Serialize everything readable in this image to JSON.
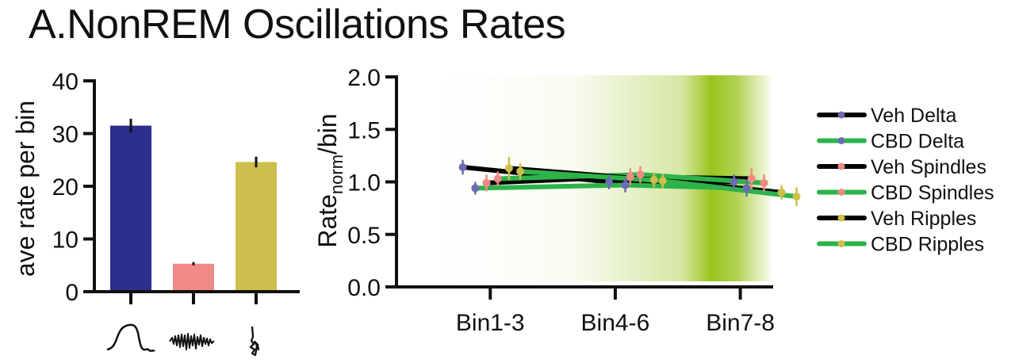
{
  "title": "A.NonREM Oscillations Rates",
  "chart_data": [
    {
      "type": "bar",
      "ylabel": "ave rate per bin",
      "ylim": [
        0,
        40
      ],
      "yticks": [
        "0",
        "10",
        "20",
        "30",
        "40"
      ],
      "categories": [
        "delta-waveform",
        "spindle-waveform",
        "ripple-waveform"
      ],
      "values": [
        31.5,
        5.3,
        24.6
      ],
      "errors": [
        1.3,
        0.3,
        1.0
      ],
      "colors": [
        "#2b2f8d",
        "#f08a86",
        "#cdbf4b"
      ]
    },
    {
      "type": "line",
      "ylabel_main": "Rate",
      "ylabel_sub": "norm",
      "ylabel_tail": "/bin",
      "ylim": [
        0,
        2
      ],
      "yticks": [
        "0.0",
        "0.5",
        "1.0",
        "1.5",
        "2.0"
      ],
      "xlim": [
        0,
        3
      ],
      "categories": [
        "Bin1-3",
        "Bin4-6",
        "Bin7-8"
      ],
      "category_x": [
        0.75,
        1.75,
        2.75
      ],
      "background_gradient": "#9ac41e",
      "legend_position": "right",
      "series": [
        {
          "name": "Veh Delta",
          "line": "#000000",
          "marker": "#6c6cb4",
          "points": [
            [
              0.53,
              1.14,
              0.07
            ],
            [
              1.7,
              1.0,
              0.07
            ],
            [
              2.7,
              1.0,
              0.07
            ]
          ]
        },
        {
          "name": "CBD Delta",
          "line": "#2db34a",
          "marker": "#6c6cb4",
          "points": [
            [
              0.63,
              0.94,
              0.06
            ],
            [
              1.83,
              0.97,
              0.07
            ],
            [
              2.8,
              0.94,
              0.08
            ]
          ]
        },
        {
          "name": "Veh Spindles",
          "line": "#000000",
          "marker": "#f08a86",
          "points": [
            [
              0.72,
              0.99,
              0.08
            ],
            [
              1.87,
              1.05,
              0.08
            ],
            [
              2.84,
              1.03,
              0.1
            ]
          ]
        },
        {
          "name": "CBD Spindles",
          "line": "#2db34a",
          "marker": "#f08a86",
          "points": [
            [
              0.81,
              1.03,
              0.07
            ],
            [
              1.95,
              1.07,
              0.08
            ],
            [
              2.94,
              0.99,
              0.08
            ]
          ]
        },
        {
          "name": "Veh Ripples",
          "line": "#000000",
          "marker": "#cdbf4b",
          "points": [
            [
              0.9,
              1.13,
              0.11
            ],
            [
              2.06,
              1.02,
              0.07
            ],
            [
              3.08,
              0.9,
              0.07
            ]
          ]
        },
        {
          "name": "CBD Ripples",
          "line": "#2db34a",
          "marker": "#cdbf4b",
          "points": [
            [
              0.99,
              1.1,
              0.08
            ],
            [
              2.13,
              1.01,
              0.07
            ],
            [
              3.2,
              0.86,
              0.09
            ]
          ]
        }
      ]
    }
  ]
}
